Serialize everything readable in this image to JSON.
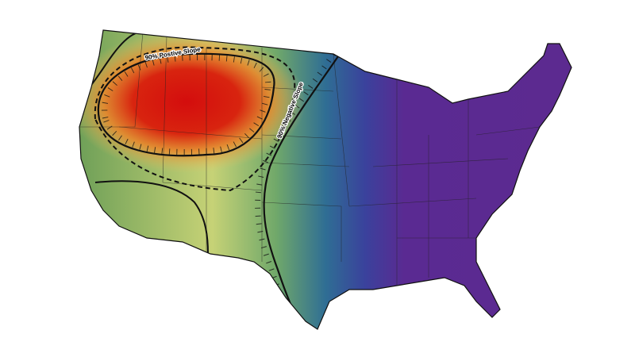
{
  "annotations": [
    "90% Postive Slope",
    "90% Negative Slope"
  ]
}
